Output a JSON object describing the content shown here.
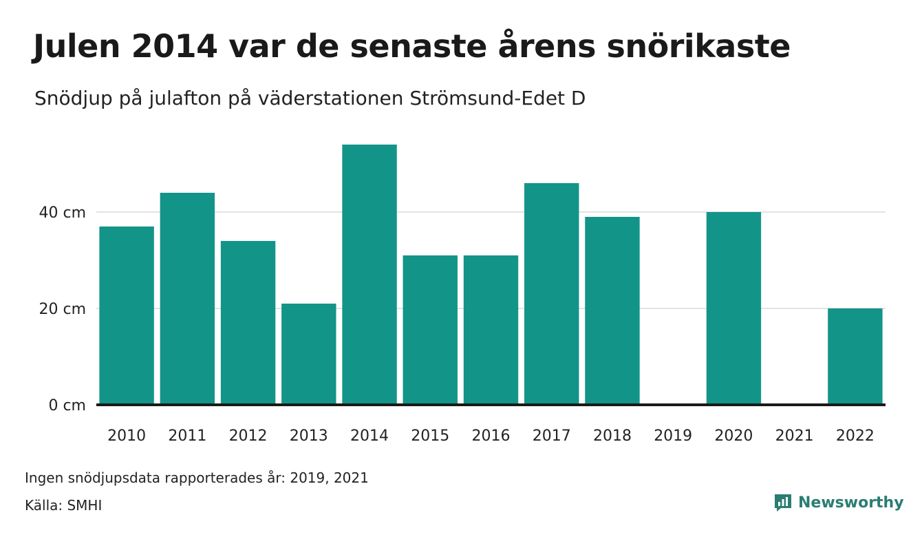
{
  "title": "Julen 2014 var de senaste årens snörikaste",
  "subtitle": "Snödjup på julafton på väderstationen Strömsund-Edet D",
  "note": "Ingen snödjupsdata rapporterades år: 2019, 2021",
  "source": "Källa: SMHI",
  "brand": "Newsworthy",
  "colors": {
    "bar": "#139488",
    "axis": "#1a1a1a",
    "grid": "#e3e3e3",
    "brand": "#2a7d72"
  },
  "chart_data": {
    "type": "bar",
    "categories": [
      "2010",
      "2011",
      "2012",
      "2013",
      "2014",
      "2015",
      "2016",
      "2017",
      "2018",
      "2019",
      "2020",
      "2021",
      "2022"
    ],
    "values": [
      37,
      44,
      34,
      21,
      54,
      31,
      31,
      46,
      39,
      null,
      40,
      null,
      20
    ],
    "yticks": [
      0,
      20,
      40
    ],
    "ytick_labels": [
      "0 cm",
      "20 cm",
      "40 cm"
    ],
    "ylim": [
      0,
      56
    ],
    "grid": true
  }
}
